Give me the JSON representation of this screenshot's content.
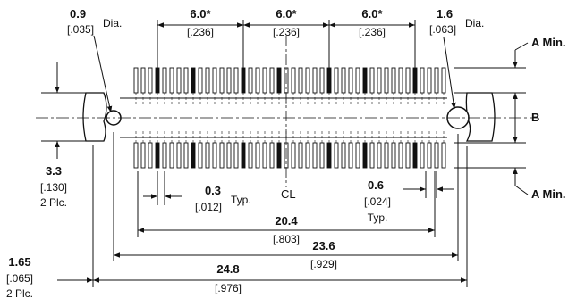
{
  "labels": {
    "hole_left_mm": "0.9",
    "hole_left_in": "[.035]",
    "hole_left_suffix": "Dia.",
    "pitch_1_mm": "6.0*",
    "pitch_1_in": "[.236]",
    "pitch_2_mm": "6.0*",
    "pitch_2_in": "[.236]",
    "pitch_3_mm": "6.0*",
    "pitch_3_in": "[.236]",
    "hole_right_mm": "1.6",
    "hole_right_in": "[.063]",
    "hole_right_suffix": "Dia.",
    "a_min_top": "A Min.",
    "b_label": "B",
    "a_min_bottom": "A Min.",
    "height_mm": "3.3",
    "height_in": "[.130]",
    "height_note": "2 Plc.",
    "contact_width_mm": "0.3",
    "contact_width_in": "[.012]",
    "contact_width_note": "Typ.",
    "centerline": "CL",
    "contact_pitch_mm": "0.6",
    "contact_pitch_in": "[.024]",
    "contact_pitch_note": "Typ.",
    "span_20_mm": "20.4",
    "span_20_in": "[.803]",
    "span_23_mm": "23.6",
    "span_23_in": "[.929]",
    "span_24_mm": "24.8",
    "span_24_in": "[.976]",
    "offset_mm": "1.65",
    "offset_in": "[.065]",
    "offset_note": "2 Plc."
  }
}
